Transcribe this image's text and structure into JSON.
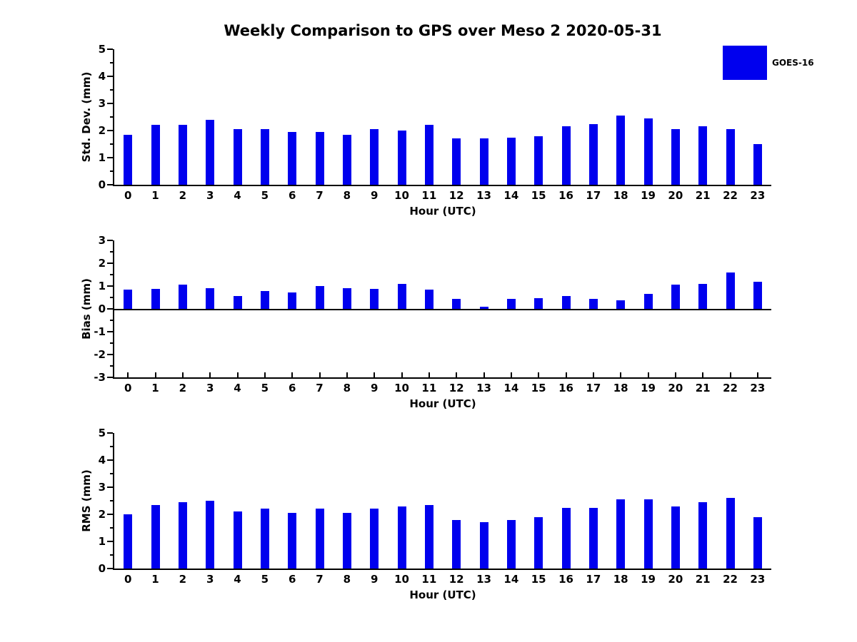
{
  "title": "Weekly Comparison to GPS over Meso 2 2020-05-31",
  "legend": {
    "label": "GOES-16",
    "color": "#0000ee",
    "position": "top-right"
  },
  "colors": {
    "bar": "#0000ee",
    "axis": "#000000",
    "text": "#000000",
    "background": "#ffffff"
  },
  "chart_data": [
    {
      "type": "bar",
      "series_name": "GOES-16",
      "ylabel": "Std. Dev. (mm)",
      "xlabel": "Hour (UTC)",
      "ylim": [
        0,
        5
      ],
      "yticks": [
        0,
        1,
        2,
        3,
        4,
        5
      ],
      "minor_tick_step": 0.5,
      "grid": false,
      "bar_color": "#0000ee",
      "categories": [
        "0",
        "1",
        "2",
        "3",
        "4",
        "5",
        "6",
        "7",
        "8",
        "9",
        "10",
        "11",
        "12",
        "13",
        "14",
        "15",
        "16",
        "17",
        "18",
        "19",
        "20",
        "21",
        "22",
        "23"
      ],
      "values": [
        1.85,
        2.2,
        2.2,
        2.4,
        2.05,
        2.05,
        1.95,
        1.95,
        1.85,
        2.05,
        2.0,
        2.2,
        1.7,
        1.7,
        1.75,
        1.8,
        2.15,
        2.25,
        2.55,
        2.45,
        2.05,
        2.15,
        2.05,
        1.5
      ]
    },
    {
      "type": "bar",
      "series_name": "GOES-16",
      "ylabel": "Bias (mm)",
      "xlabel": "Hour (UTC)",
      "ylim": [
        -3,
        3
      ],
      "yticks": [
        -3,
        -2,
        -1,
        0,
        1,
        2,
        3
      ],
      "minor_tick_step": 0.5,
      "grid": false,
      "bar_color": "#0000ee",
      "categories": [
        "0",
        "1",
        "2",
        "3",
        "4",
        "5",
        "6",
        "7",
        "8",
        "9",
        "10",
        "11",
        "12",
        "13",
        "14",
        "15",
        "16",
        "17",
        "18",
        "19",
        "20",
        "21",
        "22",
        "23"
      ],
      "values": [
        0.85,
        0.88,
        1.05,
        0.9,
        0.57,
        0.78,
        0.72,
        1.0,
        0.9,
        0.88,
        1.1,
        0.85,
        0.45,
        0.08,
        0.43,
        0.48,
        0.55,
        0.43,
        0.38,
        0.65,
        1.05,
        1.1,
        1.6,
        1.2
      ]
    },
    {
      "type": "bar",
      "series_name": "GOES-16",
      "ylabel": "RMS (mm)",
      "xlabel": "Hour (UTC)",
      "ylim": [
        0,
        5
      ],
      "yticks": [
        0,
        1,
        2,
        3,
        4,
        5
      ],
      "minor_tick_step": 0.5,
      "grid": false,
      "bar_color": "#0000ee",
      "categories": [
        "0",
        "1",
        "2",
        "3",
        "4",
        "5",
        "6",
        "7",
        "8",
        "9",
        "10",
        "11",
        "12",
        "13",
        "14",
        "15",
        "16",
        "17",
        "18",
        "19",
        "20",
        "21",
        "22",
        "23"
      ],
      "values": [
        2.0,
        2.35,
        2.45,
        2.5,
        2.1,
        2.2,
        2.05,
        2.2,
        2.05,
        2.2,
        2.3,
        2.35,
        1.8,
        1.7,
        1.8,
        1.9,
        2.25,
        2.25,
        2.55,
        2.55,
        2.3,
        2.45,
        2.6,
        1.9
      ]
    }
  ]
}
